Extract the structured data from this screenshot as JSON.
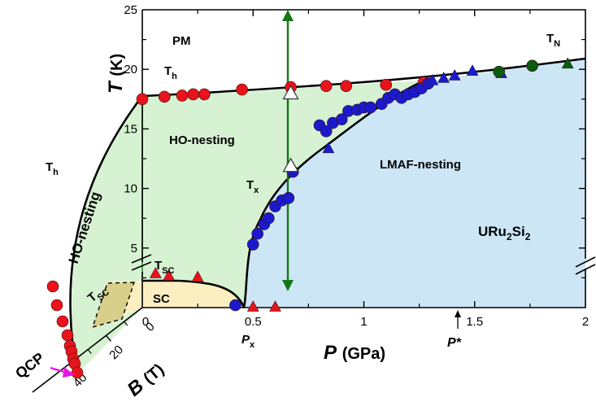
{
  "chart_data": {
    "type": "scatter",
    "title": "",
    "x_axis": {
      "label_italic": "P",
      "label_unit": "(GPa)",
      "range": [
        0,
        2
      ],
      "ticks": [
        "0",
        "0.5",
        "1",
        "1.5",
        "2"
      ]
    },
    "y_axis": {
      "label_italic": "T",
      "label_unit": "(K)",
      "range": [
        0,
        25
      ],
      "ticks": [
        "5",
        "10",
        "15",
        "20",
        "25"
      ]
    },
    "b_axis": {
      "label_italic": "B",
      "label_unit": "(T)",
      "range": [
        0,
        40
      ],
      "ticks": [
        "0",
        "20",
        "40"
      ]
    },
    "region_labels": {
      "pm": "PM",
      "ho_nesting": "HO-nesting",
      "lmaf_nesting": "LMAF-nesting",
      "sc": "SC",
      "ho_nesting_field": "HO-nesting",
      "compound": "URu2Si2"
    },
    "line_labels": {
      "th": "T",
      "th_sub": "h",
      "tn": "T",
      "tn_sub": "N",
      "tx": "T",
      "tx_sub": "x",
      "tsc": "T",
      "tsc_sub": "SC",
      "th_field": "T",
      "th_field_sub": "h",
      "tsc_field": "T",
      "tsc_field_sub": "SC"
    },
    "pressure_markers": {
      "px": "P",
      "px_sub": "x",
      "pstar": "P*"
    },
    "qcp_label": "QCP",
    "colors": {
      "ho_region": "#d6f2d2",
      "lmaf_region": "#cde6f6",
      "sc_region": "#fbefc2",
      "field_sc_region": "#d8cf8a",
      "red_points": "#e8131b",
      "blue_points": "#1a1acc",
      "green_points": "#0d5b0d",
      "arrow": "#147814",
      "qcp": "#e817e0"
    },
    "series": [
      {
        "name": "T_h (pressure)",
        "marker": "circle",
        "color": "red",
        "points": [
          [
            0,
            17.5
          ],
          [
            0.1,
            17.7
          ],
          [
            0.18,
            17.8
          ],
          [
            0.23,
            17.9
          ],
          [
            0.28,
            17.9
          ],
          [
            0.45,
            18.3
          ],
          [
            0.67,
            18.5
          ],
          [
            0.83,
            18.6
          ],
          [
            0.92,
            18.6
          ],
          [
            1.1,
            18.7
          ],
          [
            1.27,
            18.9
          ]
        ]
      },
      {
        "name": "T_h (pressure)",
        "marker": "triangle",
        "color": "red",
        "points": [
          [
            1.29,
            19.0
          ]
        ]
      },
      {
        "name": "T_x",
        "marker": "circle",
        "color": "blue",
        "points": [
          [
            0.42,
            0.2
          ],
          [
            0.5,
            5.3
          ],
          [
            0.52,
            6.2
          ],
          [
            0.55,
            7.0
          ],
          [
            0.57,
            7.5
          ],
          [
            0.6,
            8.5
          ],
          [
            0.63,
            9.0
          ],
          [
            0.66,
            9.2
          ],
          [
            0.68,
            11.4
          ],
          [
            0.8,
            15.3
          ],
          [
            0.83,
            14.8
          ],
          [
            0.86,
            15.5
          ],
          [
            0.9,
            15.8
          ],
          [
            0.93,
            16.5
          ],
          [
            0.97,
            16.6
          ],
          [
            1.0,
            16.8
          ],
          [
            1.03,
            16.8
          ],
          [
            1.08,
            17.1
          ],
          [
            1.11,
            17.6
          ],
          [
            1.14,
            17.9
          ],
          [
            1.17,
            17.6
          ],
          [
            1.2,
            17.9
          ],
          [
            1.23,
            18.1
          ],
          [
            1.26,
            18.4
          ],
          [
            1.29,
            18.8
          ]
        ]
      },
      {
        "name": "T_x",
        "marker": "triangle",
        "color": "blue",
        "points": [
          [
            0.84,
            13.4
          ],
          [
            1.31,
            19.1
          ],
          [
            1.36,
            19.3
          ],
          [
            1.41,
            19.5
          ],
          [
            1.49,
            19.9
          ],
          [
            1.62,
            19.7
          ]
        ]
      },
      {
        "name": "T_N",
        "marker": "circle",
        "color": "green",
        "points": [
          [
            1.61,
            19.8
          ],
          [
            1.76,
            20.3
          ]
        ]
      },
      {
        "name": "T_N",
        "marker": "triangle",
        "color": "green",
        "points": [
          [
            1.92,
            20.5
          ]
        ]
      },
      {
        "name": "T_SC",
        "marker": "triangle",
        "color": "red",
        "points": [
          [
            0.06,
            2.9
          ],
          [
            0.12,
            2.7
          ],
          [
            0.25,
            2.6
          ],
          [
            0.5,
            0.1
          ],
          [
            0.6,
            0.1
          ]
        ]
      }
    ],
    "field_points_th": [
      0,
      0,
      0,
      0,
      0,
      0,
      0,
      0
    ],
    "open_triangles_p": [
      0.67,
      0.67
    ],
    "open_triangles_t": [
      18.0,
      11.9
    ]
  }
}
